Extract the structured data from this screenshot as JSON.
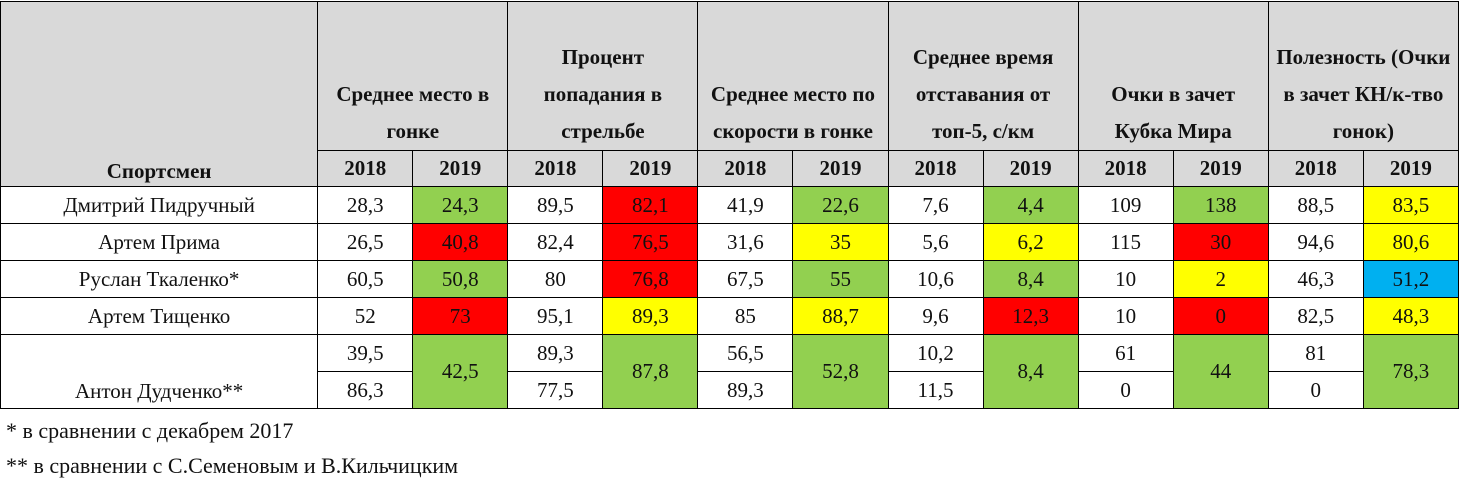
{
  "table": {
    "name_header": "Спортсмен",
    "groups": [
      "Среднее место в гонке",
      "Процент попадания в стрельбе",
      "Среднее место по скорости в гонке",
      "Среднее время отставания от топ-5, с/км",
      "Очки в зачет Кубка Мира",
      "Полезность (Очки в зачет КН/к-тво гонок)"
    ],
    "years": [
      "2018",
      "2019"
    ],
    "rows": [
      {
        "name": "Дмитрий Пидручный",
        "cells": [
          {
            "a": [
              "28,3"
            ],
            "b": "24,3",
            "color": "#92d050"
          },
          {
            "a": [
              "89,5"
            ],
            "b": "82,1",
            "color": "#ff0000"
          },
          {
            "a": [
              "41,9"
            ],
            "b": "22,6",
            "color": "#92d050"
          },
          {
            "a": [
              "7,6"
            ],
            "b": "4,4",
            "color": "#92d050"
          },
          {
            "a": [
              "109"
            ],
            "b": "138",
            "color": "#92d050"
          },
          {
            "a": [
              "88,5"
            ],
            "b": "83,5",
            "color": "#ffff00"
          }
        ]
      },
      {
        "name": "Артем Прима",
        "cells": [
          {
            "a": [
              "26,5"
            ],
            "b": "40,8",
            "color": "#ff0000"
          },
          {
            "a": [
              "82,4"
            ],
            "b": "76,5",
            "color": "#ff0000"
          },
          {
            "a": [
              "31,6"
            ],
            "b": "35",
            "color": "#ffff00"
          },
          {
            "a": [
              "5,6"
            ],
            "b": "6,2",
            "color": "#ffff00"
          },
          {
            "a": [
              "115"
            ],
            "b": "30",
            "color": "#ff0000"
          },
          {
            "a": [
              "94,6"
            ],
            "b": "80,6",
            "color": "#ffff00"
          }
        ]
      },
      {
        "name": "Руслан Ткаленко*",
        "cells": [
          {
            "a": [
              "60,5"
            ],
            "b": "50,8",
            "color": "#92d050"
          },
          {
            "a": [
              "80"
            ],
            "b": "76,8",
            "color": "#ff0000"
          },
          {
            "a": [
              "67,5"
            ],
            "b": "55",
            "color": "#92d050"
          },
          {
            "a": [
              "10,6"
            ],
            "b": "8,4",
            "color": "#92d050"
          },
          {
            "a": [
              "10"
            ],
            "b": "2",
            "color": "#ffff00"
          },
          {
            "a": [
              "46,3"
            ],
            "b": "51,2",
            "color": "#00b0f0"
          }
        ]
      },
      {
        "name": "Артем Тищенко",
        "cells": [
          {
            "a": [
              "52"
            ],
            "b": "73",
            "color": "#ff0000"
          },
          {
            "a": [
              "95,1"
            ],
            "b": "89,3",
            "color": "#ffff00"
          },
          {
            "a": [
              "85"
            ],
            "b": "88,7",
            "color": "#ffff00"
          },
          {
            "a": [
              "9,6"
            ],
            "b": "12,3",
            "color": "#ff0000"
          },
          {
            "a": [
              "10"
            ],
            "b": "0",
            "color": "#ff0000"
          },
          {
            "a": [
              "82,5"
            ],
            "b": "48,3",
            "color": "#ffff00"
          }
        ]
      },
      {
        "name": "Антон Дудченко**",
        "cells": [
          {
            "a": [
              "39,5",
              "86,3"
            ],
            "b": "42,5",
            "color": "#92d050"
          },
          {
            "a": [
              "89,3",
              "77,5"
            ],
            "b": "87,8",
            "color": "#92d050"
          },
          {
            "a": [
              "56,5",
              "89,3"
            ],
            "b": "52,8",
            "color": "#92d050"
          },
          {
            "a": [
              "10,2",
              "11,5"
            ],
            "b": "8,4",
            "color": "#92d050"
          },
          {
            "a": [
              "61",
              "0"
            ],
            "b": "44",
            "color": "#92d050"
          },
          {
            "a": [
              "81",
              "0"
            ],
            "b": "78,3",
            "color": "#92d050"
          }
        ]
      }
    ],
    "footnotes": [
      "* в сравнении с декабрем 2017",
      "** в сравнении с С.Семеновым и В.Кильчицким"
    ]
  }
}
